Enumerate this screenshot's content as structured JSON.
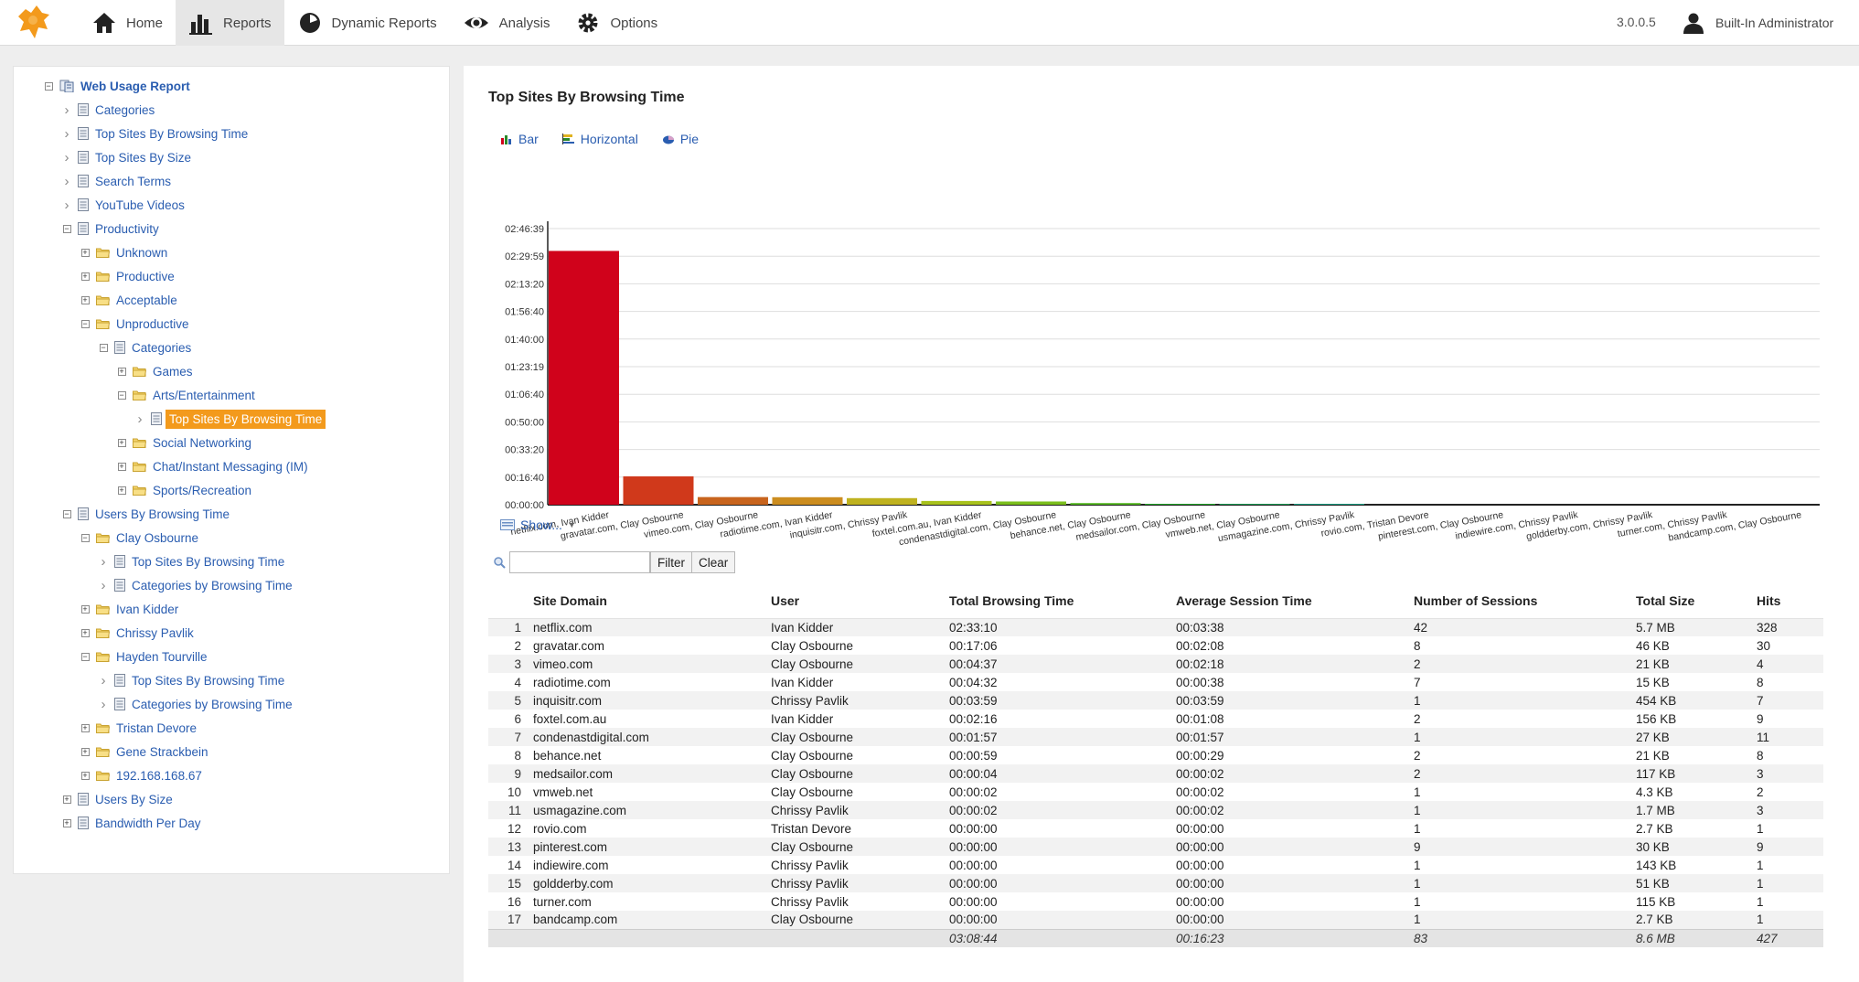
{
  "nav": {
    "items": [
      {
        "label": "Home",
        "icon": "home-icon"
      },
      {
        "label": "Reports",
        "icon": "bar-chart-icon",
        "active": true
      },
      {
        "label": "Dynamic Reports",
        "icon": "pie-gauge-icon"
      },
      {
        "label": "Analysis",
        "icon": "eye-icon"
      },
      {
        "label": "Options",
        "icon": "gear-icon"
      }
    ],
    "version": "3.0.0.5",
    "user": "Built-In Administrator"
  },
  "tree": [
    {
      "label": "Web Usage Report",
      "level": 0,
      "toggle": "minus",
      "icon": "report-root-icon",
      "bold": true
    },
    {
      "label": "Categories",
      "level": 1,
      "toggle": "arrow",
      "icon": "report-icon"
    },
    {
      "label": "Top Sites By Browsing Time",
      "level": 1,
      "toggle": "arrow",
      "icon": "report-icon"
    },
    {
      "label": "Top Sites By Size",
      "level": 1,
      "toggle": "arrow",
      "icon": "report-icon"
    },
    {
      "label": "Search Terms",
      "level": 1,
      "toggle": "arrow",
      "icon": "report-icon"
    },
    {
      "label": "YouTube Videos",
      "level": 1,
      "toggle": "arrow",
      "icon": "report-icon"
    },
    {
      "label": "Productivity",
      "level": 1,
      "toggle": "minus",
      "icon": "report-icon"
    },
    {
      "label": "Unknown",
      "level": 2,
      "toggle": "plus",
      "icon": "folder-icon"
    },
    {
      "label": "Productive",
      "level": 2,
      "toggle": "plus",
      "icon": "folder-icon"
    },
    {
      "label": "Acceptable",
      "level": 2,
      "toggle": "plus",
      "icon": "folder-icon"
    },
    {
      "label": "Unproductive",
      "level": 2,
      "toggle": "minus",
      "icon": "folder-icon"
    },
    {
      "label": "Categories",
      "level": 3,
      "toggle": "minus",
      "icon": "report-icon"
    },
    {
      "label": "Games",
      "level": 4,
      "toggle": "plus",
      "icon": "folder-icon"
    },
    {
      "label": "Arts/Entertainment",
      "level": 4,
      "toggle": "minus",
      "icon": "folder-icon"
    },
    {
      "label": "Top Sites By Browsing Time",
      "level": 5,
      "toggle": "arrow",
      "icon": "report-icon",
      "selected": true
    },
    {
      "label": "Social Networking",
      "level": 4,
      "toggle": "plus",
      "icon": "folder-icon"
    },
    {
      "label": "Chat/Instant Messaging (IM)",
      "level": 4,
      "toggle": "plus",
      "icon": "folder-icon"
    },
    {
      "label": "Sports/Recreation",
      "level": 4,
      "toggle": "plus",
      "icon": "folder-icon"
    },
    {
      "label": "Users By Browsing Time",
      "level": 1,
      "toggle": "minus",
      "icon": "report-icon"
    },
    {
      "label": "Clay Osbourne",
      "level": 2,
      "toggle": "minus",
      "icon": "folder-icon"
    },
    {
      "label": "Top Sites By Browsing Time",
      "level": 3,
      "toggle": "arrow",
      "icon": "report-icon"
    },
    {
      "label": "Categories by Browsing Time",
      "level": 3,
      "toggle": "arrow",
      "icon": "report-icon"
    },
    {
      "label": "Ivan Kidder",
      "level": 2,
      "toggle": "plus",
      "icon": "folder-icon"
    },
    {
      "label": "Chrissy Pavlik",
      "level": 2,
      "toggle": "plus",
      "icon": "folder-icon"
    },
    {
      "label": "Hayden Tourville",
      "level": 2,
      "toggle": "minus",
      "icon": "folder-icon"
    },
    {
      "label": "Top Sites By Browsing Time",
      "level": 3,
      "toggle": "arrow",
      "icon": "report-icon"
    },
    {
      "label": "Categories by Browsing Time",
      "level": 3,
      "toggle": "arrow",
      "icon": "report-icon"
    },
    {
      "label": "Tristan Devore",
      "level": 2,
      "toggle": "plus",
      "icon": "folder-icon"
    },
    {
      "label": "Gene Strackbein",
      "level": 2,
      "toggle": "plus",
      "icon": "folder-icon"
    },
    {
      "label": "192.168.168.67",
      "level": 2,
      "toggle": "plus",
      "icon": "folder-icon"
    },
    {
      "label": "Users By Size",
      "level": 1,
      "toggle": "plus",
      "icon": "report-icon"
    },
    {
      "label": "Bandwidth Per Day",
      "level": 1,
      "toggle": "plus",
      "icon": "report-icon"
    }
  ],
  "report": {
    "title": "Top Sites By Browsing Time",
    "chart_tabs": [
      {
        "label": "Bar",
        "icon": "bar-chart-small-icon"
      },
      {
        "label": "Horizontal",
        "icon": "horizontal-chart-icon"
      },
      {
        "label": "Pie",
        "icon": "pie-chart-icon"
      }
    ],
    "show_label": "Show...",
    "filter_button": "Filter",
    "clear_button": "Clear",
    "filter_placeholder": ""
  },
  "chart_data": {
    "type": "bar",
    "y_ticks": [
      "02:46:39",
      "02:29:59",
      "02:13:20",
      "01:56:40",
      "01:40:00",
      "01:23:19",
      "01:06:40",
      "00:50:00",
      "00:33:20",
      "00:16:40",
      "00:00:00"
    ],
    "ylim_seconds": [
      0,
      9999
    ],
    "grid": true,
    "categories": [
      "netflix.com, Ivan Kidder",
      "gravatar.com, Clay Osbourne",
      "vimeo.com, Clay Osbourne",
      "radiotime.com, Ivan Kidder",
      "inquisitr.com, Chrissy Pavlik",
      "foxtel.com.au, Ivan Kidder",
      "condenastdigital.com, Clay Osbourne",
      "behance.net, Clay Osbourne",
      "medsailor.com, Clay Osbourne",
      "vmweb.net, Clay Osbourne",
      "usmagazine.com, Chrissy Pavlik",
      "rovio.com, Tristan Devore",
      "pinterest.com, Clay Osbourne",
      "indiewire.com, Chrissy Pavlik",
      "goldderby.com, Chrissy Pavlik",
      "turner.com, Chrissy Pavlik",
      "bandcamp.com, Clay Osbourne"
    ],
    "values": [
      9190,
      1026,
      277,
      272,
      239,
      136,
      117,
      59,
      4,
      2,
      2,
      0,
      0,
      0,
      0,
      0,
      0
    ],
    "colors": [
      "#d0021b",
      "#d0391b",
      "#c8641d",
      "#cc8d1f",
      "#bfb21f",
      "#a8c21c",
      "#7bbf1c",
      "#4fb51c",
      "#22a52a",
      "#1b9a55",
      "#1a9a80",
      "#1a8fa0",
      "#1a7fa6",
      "#1a70aa",
      "#1a60ae",
      "#1a50b0",
      "#1a40b2"
    ]
  },
  "table": {
    "headers": [
      "Site Domain",
      "User",
      "Total Browsing Time",
      "Average Session Time",
      "Number of Sessions",
      "Total Size",
      "Hits"
    ],
    "rows": [
      [
        "1",
        "netflix.com",
        "Ivan Kidder",
        "02:33:10",
        "00:03:38",
        "42",
        "5.7 MB",
        "328"
      ],
      [
        "2",
        "gravatar.com",
        "Clay Osbourne",
        "00:17:06",
        "00:02:08",
        "8",
        "46 KB",
        "30"
      ],
      [
        "3",
        "vimeo.com",
        "Clay Osbourne",
        "00:04:37",
        "00:02:18",
        "2",
        "21 KB",
        "4"
      ],
      [
        "4",
        "radiotime.com",
        "Ivan Kidder",
        "00:04:32",
        "00:00:38",
        "7",
        "15 KB",
        "8"
      ],
      [
        "5",
        "inquisitr.com",
        "Chrissy Pavlik",
        "00:03:59",
        "00:03:59",
        "1",
        "454 KB",
        "7"
      ],
      [
        "6",
        "foxtel.com.au",
        "Ivan Kidder",
        "00:02:16",
        "00:01:08",
        "2",
        "156 KB",
        "9"
      ],
      [
        "7",
        "condenastdigital.com",
        "Clay Osbourne",
        "00:01:57",
        "00:01:57",
        "1",
        "27 KB",
        "11"
      ],
      [
        "8",
        "behance.net",
        "Clay Osbourne",
        "00:00:59",
        "00:00:29",
        "2",
        "21 KB",
        "8"
      ],
      [
        "9",
        "medsailor.com",
        "Clay Osbourne",
        "00:00:04",
        "00:00:02",
        "2",
        "117 KB",
        "3"
      ],
      [
        "10",
        "vmweb.net",
        "Clay Osbourne",
        "00:00:02",
        "00:00:02",
        "1",
        "4.3 KB",
        "2"
      ],
      [
        "11",
        "usmagazine.com",
        "Chrissy Pavlik",
        "00:00:02",
        "00:00:02",
        "1",
        "1.7 MB",
        "3"
      ],
      [
        "12",
        "rovio.com",
        "Tristan Devore",
        "00:00:00",
        "00:00:00",
        "1",
        "2.7 KB",
        "1"
      ],
      [
        "13",
        "pinterest.com",
        "Clay Osbourne",
        "00:00:00",
        "00:00:00",
        "9",
        "30 KB",
        "9"
      ],
      [
        "14",
        "indiewire.com",
        "Chrissy Pavlik",
        "00:00:00",
        "00:00:00",
        "1",
        "143 KB",
        "1"
      ],
      [
        "15",
        "goldderby.com",
        "Chrissy Pavlik",
        "00:00:00",
        "00:00:00",
        "1",
        "51 KB",
        "1"
      ],
      [
        "16",
        "turner.com",
        "Chrissy Pavlik",
        "00:00:00",
        "00:00:00",
        "1",
        "115 KB",
        "1"
      ],
      [
        "17",
        "bandcamp.com",
        "Clay Osbourne",
        "00:00:00",
        "00:00:00",
        "1",
        "2.7 KB",
        "1"
      ]
    ],
    "totals": [
      "",
      "",
      "",
      "03:08:44",
      "00:16:23",
      "83",
      "8.6 MB",
      "427"
    ]
  }
}
